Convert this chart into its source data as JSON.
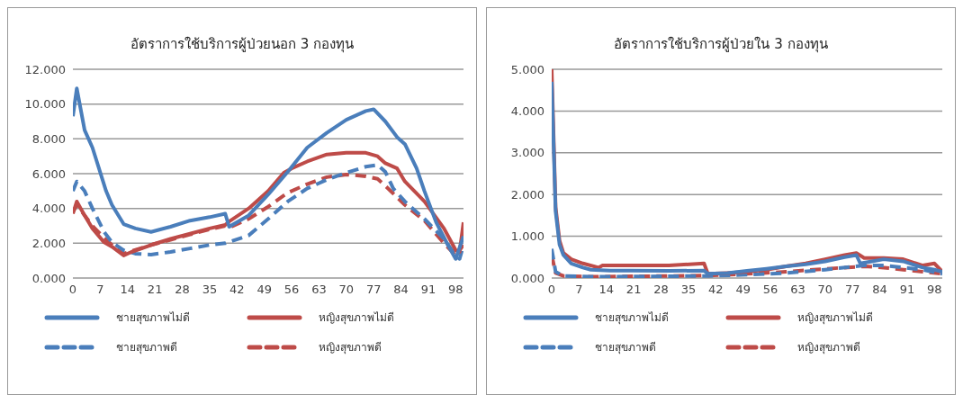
{
  "chart_data": [
    {
      "type": "line",
      "title": "อัตราการใช้บริการผู้ป่วยนอก 3 กองทุน",
      "xlim": [
        0,
        100
      ],
      "xticks": [
        0,
        7,
        14,
        21,
        28,
        35,
        42,
        49,
        56,
        63,
        70,
        77,
        84,
        91,
        98
      ],
      "ylim": [
        0,
        12
      ],
      "yticks": [
        {
          "value": 0,
          "label": "0.000"
        },
        {
          "value": 2,
          "label": "2.000"
        },
        {
          "value": 4,
          "label": "4.000"
        },
        {
          "value": 6,
          "label": "6.000"
        },
        {
          "value": 8,
          "label": "8.000"
        },
        {
          "value": 10,
          "label": "10.000"
        },
        {
          "value": 12,
          "label": "12.000"
        }
      ],
      "grid": "y",
      "legend": "bottom",
      "marker": "none",
      "series": [
        {
          "name": "ชายสุขภาพไม่ดี",
          "color": "#4a7ebb",
          "line_style": "solid",
          "x": [
            0,
            1,
            3,
            5,
            8.5,
            10,
            13,
            16,
            20,
            25,
            30,
            35,
            39,
            40,
            45,
            50,
            55,
            60,
            65,
            70,
            75,
            77,
            80,
            83,
            85,
            88,
            90,
            93,
            96,
            98,
            100
          ],
          "values": [
            9.3,
            10.9,
            8.5,
            7.5,
            5.0,
            4.2,
            3.1,
            2.85,
            2.65,
            2.95,
            3.3,
            3.5,
            3.7,
            2.95,
            3.6,
            4.8,
            6.1,
            7.5,
            8.35,
            9.1,
            9.6,
            9.7,
            9.0,
            8.1,
            7.7,
            6.3,
            5.0,
            3.2,
            1.9,
            1.1,
            2.4
          ]
        },
        {
          "name": "หญิงสุขภาพไม่ดี",
          "color": "#be4b48",
          "line_style": "solid",
          "x": [
            0,
            1,
            3,
            5,
            8,
            10,
            13,
            15,
            20,
            25,
            30,
            35,
            39,
            40,
            45,
            50,
            54,
            56,
            60,
            65,
            70,
            75,
            78,
            80,
            83,
            85,
            90,
            95,
            98,
            99,
            100
          ],
          "values": [
            3.7,
            4.4,
            3.6,
            2.85,
            2.05,
            1.8,
            1.3,
            1.5,
            1.9,
            2.25,
            2.55,
            2.85,
            3.05,
            3.25,
            4.0,
            5.0,
            6.05,
            6.3,
            6.7,
            7.1,
            7.2,
            7.2,
            7.0,
            6.6,
            6.3,
            5.55,
            4.4,
            2.85,
            1.6,
            1.5,
            3.2
          ]
        },
        {
          "name": "ชายสุขภาพดี",
          "color": "#4a7ebb",
          "line_style": "dashed",
          "x": [
            0,
            1,
            3,
            5,
            8,
            10,
            13,
            16,
            20,
            25,
            30,
            35,
            39,
            45,
            50,
            55,
            60,
            65,
            70,
            75,
            78,
            80,
            82,
            85,
            90,
            95,
            98,
            99,
            100
          ],
          "values": [
            5.0,
            5.55,
            5.0,
            4.0,
            2.65,
            2.05,
            1.6,
            1.4,
            1.35,
            1.5,
            1.7,
            1.9,
            2.0,
            2.45,
            3.4,
            4.4,
            5.15,
            5.65,
            6.05,
            6.4,
            6.5,
            6.1,
            5.15,
            4.4,
            3.4,
            2.25,
            1.3,
            1.1,
            1.9
          ]
        },
        {
          "name": "หญิงสุขภาพดี",
          "color": "#be4b48",
          "line_style": "dashed",
          "x": [
            0,
            1,
            3,
            5,
            8,
            10,
            13,
            15,
            20,
            25,
            30,
            35,
            39,
            40,
            45,
            50,
            55,
            60,
            65,
            70,
            75,
            78,
            80,
            85,
            90,
            95,
            98,
            100
          ],
          "values": [
            3.8,
            4.2,
            3.6,
            3.0,
            2.3,
            1.9,
            1.4,
            1.55,
            1.9,
            2.2,
            2.5,
            2.8,
            3.0,
            2.9,
            3.4,
            4.1,
            4.9,
            5.4,
            5.8,
            5.95,
            5.85,
            5.7,
            5.3,
            4.2,
            3.3,
            2.0,
            1.3,
            1.9
          ]
        }
      ]
    },
    {
      "type": "line",
      "title": "อัตราการใช้บริการผู้ป่วยใน 3 กองทุน",
      "xlim": [
        0,
        100
      ],
      "xticks": [
        0,
        7,
        14,
        21,
        28,
        35,
        42,
        49,
        56,
        63,
        70,
        77,
        84,
        91,
        98
      ],
      "ylim": [
        0,
        5
      ],
      "yticks": [
        {
          "value": 0,
          "label": "0.000"
        },
        {
          "value": 1,
          "label": "1.000"
        },
        {
          "value": 2,
          "label": "2.000"
        },
        {
          "value": 3,
          "label": "3.000"
        },
        {
          "value": 4,
          "label": "4.000"
        },
        {
          "value": 5,
          "label": "5.000"
        }
      ],
      "grid": "y",
      "legend": "bottom",
      "marker": "none",
      "series": [
        {
          "name": "ชายสุขภาพไม่ดี",
          "color": "#4a7ebb",
          "line_style": "solid",
          "x": [
            0,
            1,
            2,
            3,
            5,
            8,
            10,
            15,
            20,
            30,
            39,
            40,
            45,
            50,
            55,
            60,
            65,
            70,
            75,
            78,
            79,
            82,
            85,
            90,
            95,
            98,
            100
          ],
          "values": [
            4.7,
            1.6,
            0.8,
            0.55,
            0.35,
            0.25,
            0.2,
            0.18,
            0.18,
            0.17,
            0.18,
            0.1,
            0.12,
            0.17,
            0.22,
            0.28,
            0.33,
            0.4,
            0.5,
            0.55,
            0.35,
            0.4,
            0.45,
            0.4,
            0.25,
            0.2,
            0.15
          ]
        },
        {
          "name": "หญิงสุขภาพไม่ดี",
          "color": "#be4b48",
          "line_style": "solid",
          "x": [
            0,
            1,
            2,
            3,
            5,
            8,
            12,
            13,
            20,
            30,
            39,
            40,
            45,
            50,
            55,
            60,
            65,
            70,
            75,
            78,
            80,
            85,
            90,
            95,
            98,
            100
          ],
          "values": [
            5.0,
            1.7,
            0.9,
            0.6,
            0.45,
            0.35,
            0.25,
            0.3,
            0.3,
            0.3,
            0.35,
            0.1,
            0.12,
            0.15,
            0.2,
            0.28,
            0.35,
            0.45,
            0.55,
            0.6,
            0.48,
            0.48,
            0.45,
            0.3,
            0.35,
            0.15
          ]
        },
        {
          "name": "ชายสุขภาพดี",
          "color": "#4a7ebb",
          "line_style": "dashed",
          "x": [
            0,
            1,
            3,
            10,
            40,
            50,
            60,
            70,
            80,
            85,
            90,
            95,
            100
          ],
          "values": [
            0.7,
            0.15,
            0.05,
            0.03,
            0.05,
            0.08,
            0.12,
            0.2,
            0.3,
            0.3,
            0.25,
            0.2,
            0.1
          ]
        },
        {
          "name": "หญิงสุขภาพดี",
          "color": "#be4b48",
          "line_style": "dashed",
          "x": [
            0,
            1,
            3,
            10,
            40,
            50,
            60,
            70,
            80,
            85,
            90,
            95,
            100
          ],
          "values": [
            0.55,
            0.12,
            0.05,
            0.03,
            0.06,
            0.1,
            0.15,
            0.22,
            0.28,
            0.25,
            0.2,
            0.15,
            0.1
          ]
        }
      ]
    }
  ]
}
